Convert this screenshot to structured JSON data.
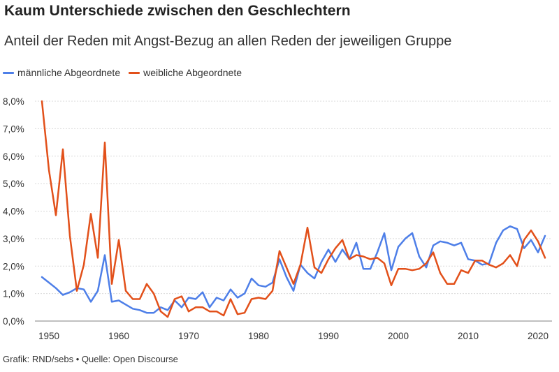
{
  "header": {
    "title": "Kaum Unterschiede zwischen den Geschlechtern",
    "subtitle": "Anteil der Reden mit Angst-Bezug an allen Reden der jeweiligen Gruppe"
  },
  "footer": {
    "source": "Grafik: RND/sebs • Quelle: Open Discourse"
  },
  "chart_data": {
    "type": "line",
    "title": "Kaum Unterschiede zwischen den Geschlechtern",
    "subtitle": "Anteil der Reden mit Angst-Bezug an allen Reden der jeweiligen Gruppe",
    "xlabel": "",
    "ylabel": "",
    "xlim": [
      1948,
      2022
    ],
    "ylim": [
      0,
      8
    ],
    "x_ticks": [
      1950,
      1960,
      1970,
      1980,
      1990,
      2000,
      2010,
      2020
    ],
    "y_ticks": [
      0,
      1,
      2,
      3,
      4,
      5,
      6,
      7,
      8
    ],
    "y_tick_labels": [
      "0,0%",
      "1,0%",
      "2,0%",
      "3,0%",
      "4,0%",
      "5,0%",
      "6,0%",
      "7,0%",
      "8,0%"
    ],
    "grid": "horizontal",
    "legend": "top-left",
    "series": [
      {
        "name": "männliche Abgeordnete",
        "color": "#4e7fe8",
        "x": [
          1949,
          1950,
          1951,
          1952,
          1953,
          1954,
          1955,
          1956,
          1957,
          1958,
          1959,
          1960,
          1961,
          1962,
          1963,
          1964,
          1965,
          1966,
          1967,
          1968,
          1969,
          1970,
          1971,
          1972,
          1973,
          1974,
          1975,
          1976,
          1977,
          1978,
          1979,
          1980,
          1981,
          1982,
          1983,
          1984,
          1985,
          1986,
          1987,
          1988,
          1989,
          1990,
          1991,
          1992,
          1993,
          1994,
          1995,
          1996,
          1997,
          1998,
          1999,
          2000,
          2001,
          2002,
          2003,
          2004,
          2005,
          2006,
          2007,
          2008,
          2009,
          2010,
          2011,
          2012,
          2013,
          2014,
          2015,
          2016,
          2017,
          2018,
          2019,
          2020,
          2021
        ],
        "values": [
          1.6,
          1.4,
          1.2,
          0.95,
          1.05,
          1.2,
          1.15,
          0.7,
          1.1,
          2.4,
          0.7,
          0.75,
          0.6,
          0.45,
          0.4,
          0.3,
          0.3,
          0.5,
          0.4,
          0.75,
          0.5,
          0.85,
          0.8,
          1.05,
          0.5,
          0.85,
          0.75,
          1.15,
          0.85,
          1.0,
          1.55,
          1.3,
          1.25,
          1.4,
          2.25,
          1.6,
          1.1,
          2.05,
          1.75,
          1.55,
          2.15,
          2.6,
          2.15,
          2.6,
          2.25,
          2.85,
          1.9,
          1.9,
          2.5,
          3.2,
          1.85,
          2.7,
          3.0,
          3.2,
          2.35,
          1.95,
          2.75,
          2.9,
          2.85,
          2.75,
          2.85,
          2.25,
          2.2,
          2.05,
          2.1,
          2.85,
          3.3,
          3.45,
          3.35,
          2.65,
          2.95,
          2.5,
          3.1
        ]
      },
      {
        "name": "weibliche Abgeordnete",
        "color": "#e2501a",
        "x": [
          1949,
          1950,
          1951,
          1952,
          1953,
          1954,
          1955,
          1956,
          1957,
          1958,
          1959,
          1960,
          1961,
          1962,
          1963,
          1964,
          1965,
          1966,
          1967,
          1968,
          1969,
          1970,
          1971,
          1972,
          1973,
          1974,
          1975,
          1976,
          1977,
          1978,
          1979,
          1980,
          1981,
          1982,
          1983,
          1984,
          1985,
          1986,
          1987,
          1988,
          1989,
          1990,
          1991,
          1992,
          1993,
          1994,
          1995,
          1996,
          1997,
          1998,
          1999,
          2000,
          2001,
          2002,
          2003,
          2004,
          2005,
          2006,
          2007,
          2008,
          2009,
          2010,
          2011,
          2012,
          2013,
          2014,
          2015,
          2016,
          2017,
          2018,
          2019,
          2020,
          2021
        ],
        "values": [
          8.0,
          5.5,
          3.85,
          6.25,
          3.1,
          1.1,
          2.05,
          3.9,
          2.3,
          6.5,
          1.35,
          2.95,
          1.1,
          0.8,
          0.8,
          1.35,
          1.0,
          0.35,
          0.15,
          0.8,
          0.9,
          0.35,
          0.5,
          0.5,
          0.35,
          0.35,
          0.2,
          0.8,
          0.25,
          0.3,
          0.8,
          0.85,
          0.8,
          1.1,
          2.55,
          1.95,
          1.35,
          2.05,
          3.4,
          1.95,
          1.75,
          2.25,
          2.65,
          2.95,
          2.25,
          2.4,
          2.35,
          2.25,
          2.3,
          2.1,
          1.3,
          1.9,
          1.9,
          1.85,
          1.9,
          2.1,
          2.5,
          1.75,
          1.35,
          1.35,
          1.85,
          1.75,
          2.2,
          2.2,
          2.05,
          1.95,
          2.1,
          2.4,
          2.0,
          2.95,
          3.3,
          2.9,
          2.3
        ]
      }
    ]
  }
}
